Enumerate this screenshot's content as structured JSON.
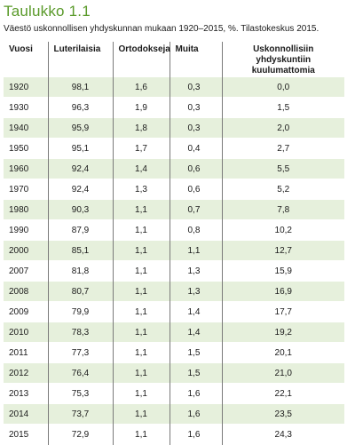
{
  "title": "Taulukko 1.1",
  "subtitle": "Väestö uskonnollisen yhdyskunnan mukaan 1920–2015, %. Tilastokeskus 2015.",
  "table": {
    "headers": [
      "Vuosi",
      "Luterilaisia",
      "Ortodokseja",
      "Muita",
      "Uskonnollisiin yhdyskuntiin kuulumattomia"
    ],
    "rows": [
      [
        "1920",
        "98,1",
        "1,6",
        "0,3",
        "0,0"
      ],
      [
        "1930",
        "96,3",
        "1,9",
        "0,3",
        "1,5"
      ],
      [
        "1940",
        "95,9",
        "1,8",
        "0,3",
        "2,0"
      ],
      [
        "1950",
        "95,1",
        "1,7",
        "0,4",
        "2,7"
      ],
      [
        "1960",
        "92,4",
        "1,4",
        "0,6",
        "5,5"
      ],
      [
        "1970",
        "92,4",
        "1,3",
        "0,6",
        "5,2"
      ],
      [
        "1980",
        "90,3",
        "1,1",
        "0,7",
        "7,8"
      ],
      [
        "1990",
        "87,9",
        "1,1",
        "0,8",
        "10,2"
      ],
      [
        "2000",
        "85,1",
        "1,1",
        "1,1",
        "12,7"
      ],
      [
        "2007",
        "81,8",
        "1,1",
        "1,3",
        "15,9"
      ],
      [
        "2008",
        "80,7",
        "1,1",
        "1,3",
        "16,9"
      ],
      [
        "2009",
        "79,9",
        "1,1",
        "1,4",
        "17,7"
      ],
      [
        "2010",
        "78,3",
        "1,1",
        "1,4",
        "19,2"
      ],
      [
        "2011",
        "77,3",
        "1,1",
        "1,5",
        "20,1"
      ],
      [
        "2012",
        "76,4",
        "1,1",
        "1,5",
        "21,0"
      ],
      [
        "2013",
        "75,3",
        "1,1",
        "1,6",
        "22,1"
      ],
      [
        "2014",
        "73,7",
        "1,1",
        "1,6",
        "23,5"
      ],
      [
        "2015",
        "72,9",
        "1,1",
        "1,6",
        "24,3"
      ]
    ]
  }
}
